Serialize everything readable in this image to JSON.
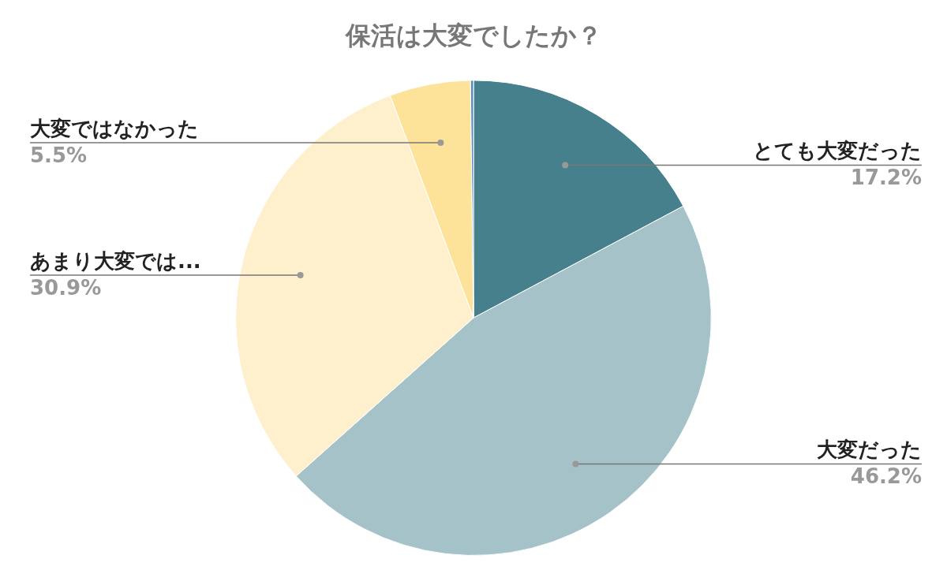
{
  "chart_data": {
    "type": "pie",
    "title": "保活は大変でしたか？",
    "categories": [
      "とても大変だった",
      "大変だった",
      "あまり大変では...",
      "大変ではなかった",
      null
    ],
    "values": [
      17.2,
      46.2,
      30.9,
      5.5,
      0.2
    ],
    "colors": [
      "#46808c",
      "#a4c2c7",
      "#fef0cc",
      "#fde29a",
      "#5b8db8"
    ],
    "value_labels": [
      "17.2%",
      "46.2%",
      "30.9%",
      "5.5%",
      null
    ],
    "legend": false
  }
}
